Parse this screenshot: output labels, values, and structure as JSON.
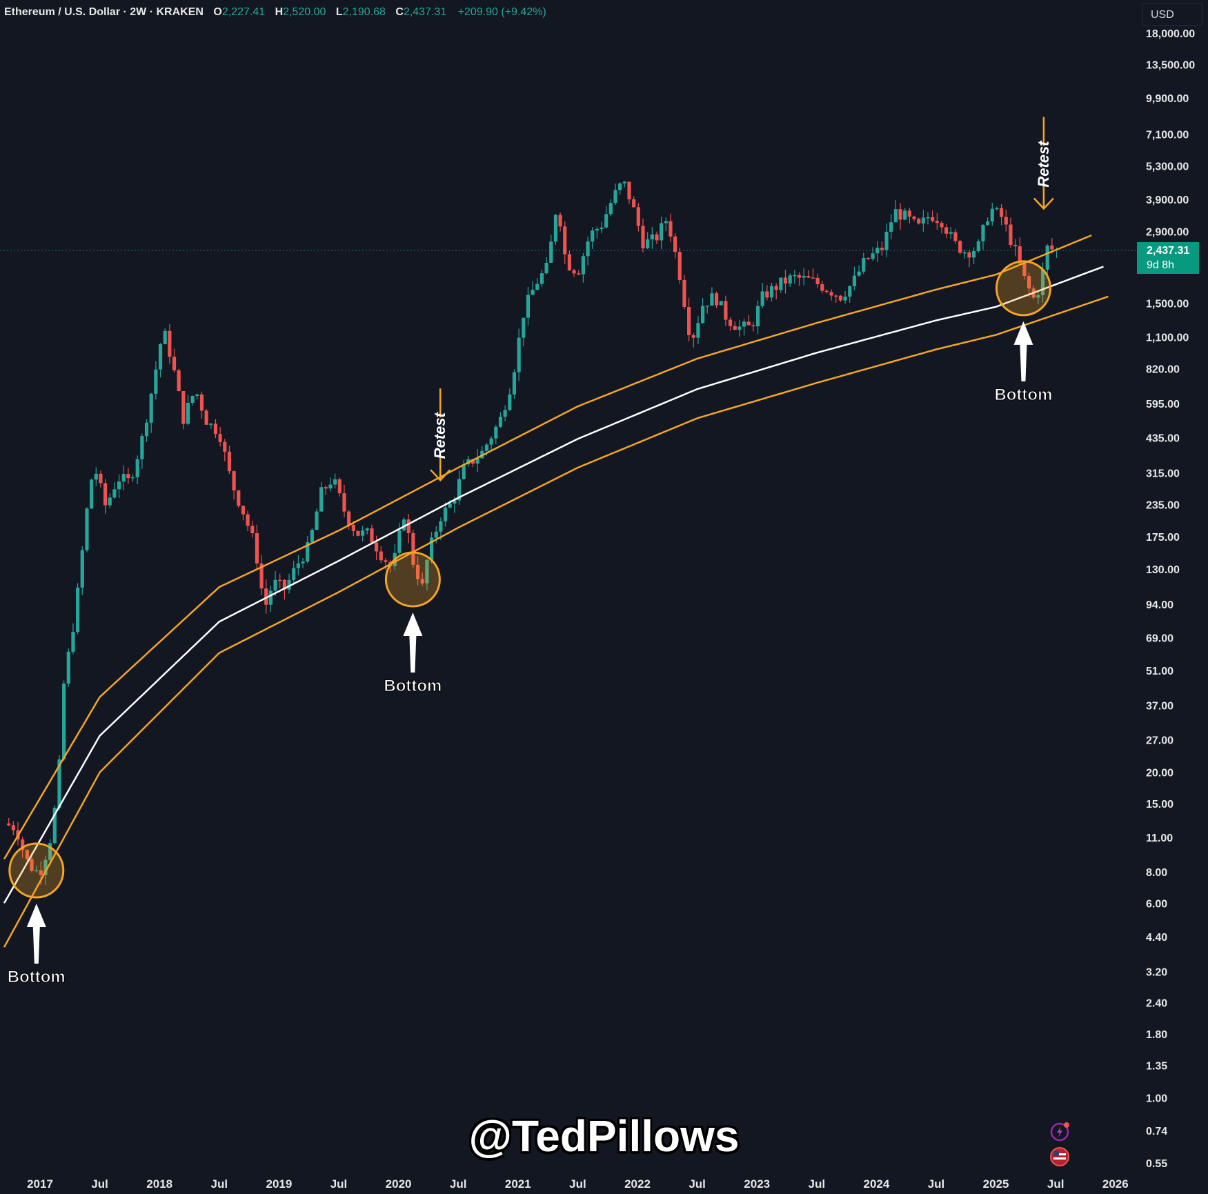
{
  "header": {
    "symbol": "Ethereum / U.S. Dollar · 2W · KRAKEN",
    "open_label": "O",
    "open": "2,227.41",
    "high_label": "H",
    "high": "2,520.00",
    "low_label": "L",
    "low": "2,190.68",
    "close_label": "C",
    "close": "2,437.31",
    "change": "+209.90 (+9.42%)"
  },
  "currency_button": "USD",
  "price_tag": {
    "price": "2,437.31",
    "countdown": "9d 8h"
  },
  "watermark": "@TedPillows",
  "colors": {
    "background": "#131722",
    "up": "#26a69a",
    "down": "#ef5350",
    "band": "#f5a623",
    "center": "#ffffff"
  },
  "chart_data": {
    "type": "candlestick",
    "y_scale": "log",
    "ylim": [
      0.5,
      20000
    ],
    "y_ticks": [
      "18,000.00",
      "13,500.00",
      "9,900.00",
      "7,100.00",
      "5,300.00",
      "3,900.00",
      "2,900.00",
      "1,500.00",
      "1,100.00",
      "820.00",
      "595.00",
      "435.00",
      "315.00",
      "235.00",
      "175.00",
      "130.00",
      "94.00",
      "69.00",
      "51.00",
      "37.00",
      "27.00",
      "20.00",
      "15.00",
      "11.00",
      "8.00",
      "6.00",
      "4.40",
      "3.20",
      "2.40",
      "1.80",
      "1.35",
      "1.00",
      "0.74",
      "0.55"
    ],
    "x_ticks": [
      {
        "label": "2017",
        "t": 2017.0
      },
      {
        "label": "Jul",
        "t": 2017.5
      },
      {
        "label": "2018",
        "t": 2018.0
      },
      {
        "label": "Jul",
        "t": 2018.5
      },
      {
        "label": "2019",
        "t": 2019.0
      },
      {
        "label": "Jul",
        "t": 2019.5
      },
      {
        "label": "2020",
        "t": 2020.0
      },
      {
        "label": "Jul",
        "t": 2020.5
      },
      {
        "label": "2021",
        "t": 2021.0
      },
      {
        "label": "Jul",
        "t": 2021.5
      },
      {
        "label": "2022",
        "t": 2022.0
      },
      {
        "label": "Jul",
        "t": 2022.5
      },
      {
        "label": "2023",
        "t": 2023.0
      },
      {
        "label": "Jul",
        "t": 2023.5
      },
      {
        "label": "2024",
        "t": 2024.0
      },
      {
        "label": "Jul",
        "t": 2024.5
      },
      {
        "label": "2025",
        "t": 2025.0
      },
      {
        "label": "Jul",
        "t": 2025.5
      },
      {
        "label": "2026",
        "t": 2026.0
      }
    ],
    "price_path": [
      [
        2016.7,
        12.5
      ],
      [
        2016.8,
        12
      ],
      [
        2016.88,
        9
      ],
      [
        2016.95,
        8.1
      ],
      [
        2017.0,
        8
      ],
      [
        2017.08,
        10.5
      ],
      [
        2017.15,
        17
      ],
      [
        2017.2,
        45
      ],
      [
        2017.3,
        90
      ],
      [
        2017.4,
        240
      ],
      [
        2017.45,
        340
      ],
      [
        2017.55,
        230
      ],
      [
        2017.65,
        300
      ],
      [
        2017.75,
        290
      ],
      [
        2017.85,
        420
      ],
      [
        2017.95,
        730
      ],
      [
        2018.03,
        1180
      ],
      [
        2018.1,
        900
      ],
      [
        2018.2,
        520
      ],
      [
        2018.3,
        680
      ],
      [
        2018.4,
        500
      ],
      [
        2018.5,
        460
      ],
      [
        2018.6,
        290
      ],
      [
        2018.7,
        220
      ],
      [
        2018.8,
        160
      ],
      [
        2018.88,
        90
      ],
      [
        2018.95,
        115
      ],
      [
        2019.05,
        108
      ],
      [
        2019.15,
        135
      ],
      [
        2019.25,
        160
      ],
      [
        2019.35,
        260
      ],
      [
        2019.45,
        300
      ],
      [
        2019.55,
        220
      ],
      [
        2019.65,
        180
      ],
      [
        2019.75,
        180
      ],
      [
        2019.85,
        150
      ],
      [
        2019.95,
        130
      ],
      [
        2020.05,
        220
      ],
      [
        2020.12,
        140
      ],
      [
        2020.2,
        110
      ],
      [
        2020.25,
        150
      ],
      [
        2020.35,
        210
      ],
      [
        2020.45,
        240
      ],
      [
        2020.55,
        330
      ],
      [
        2020.7,
        380
      ],
      [
        2020.85,
        510
      ],
      [
        2020.95,
        740
      ],
      [
        2021.05,
        1400
      ],
      [
        2021.15,
        1800
      ],
      [
        2021.25,
        2100
      ],
      [
        2021.33,
        3900
      ],
      [
        2021.4,
        2200
      ],
      [
        2021.5,
        2000
      ],
      [
        2021.6,
        2800
      ],
      [
        2021.7,
        3100
      ],
      [
        2021.8,
        4000
      ],
      [
        2021.88,
        4600
      ],
      [
        2021.95,
        3800
      ],
      [
        2022.05,
        2600
      ],
      [
        2022.15,
        2700
      ],
      [
        2022.25,
        3300
      ],
      [
        2022.35,
        2000
      ],
      [
        2022.45,
        1050
      ],
      [
        2022.55,
        1500
      ],
      [
        2022.65,
        1600
      ],
      [
        2022.75,
        1300
      ],
      [
        2022.85,
        1200
      ],
      [
        2022.95,
        1200
      ],
      [
        2023.05,
        1600
      ],
      [
        2023.2,
        1800
      ],
      [
        2023.3,
        1900
      ],
      [
        2023.45,
        1850
      ],
      [
        2023.55,
        1750
      ],
      [
        2023.7,
        1600
      ],
      [
        2023.8,
        1800
      ],
      [
        2023.9,
        2200
      ],
      [
        2024.05,
        2500
      ],
      [
        2024.15,
        3500
      ],
      [
        2024.25,
        3300
      ],
      [
        2024.35,
        3000
      ],
      [
        2024.45,
        3400
      ],
      [
        2024.55,
        3200
      ],
      [
        2024.65,
        2600
      ],
      [
        2024.75,
        2400
      ],
      [
        2024.85,
        2500
      ],
      [
        2024.95,
        3600
      ],
      [
        2025.05,
        3300
      ],
      [
        2025.15,
        2500
      ],
      [
        2025.25,
        1800
      ],
      [
        2025.32,
        1550
      ],
      [
        2025.38,
        1800
      ],
      [
        2025.42,
        2500
      ],
      [
        2025.48,
        2450
      ],
      [
        2025.52,
        2437
      ]
    ],
    "channel": {
      "upper": [
        [
          2016.7,
          9.0
        ],
        [
          2017.5,
          40
        ],
        [
          2018.5,
          110
        ],
        [
          2019.5,
          185
        ],
        [
          2020.5,
          330
        ],
        [
          2021.5,
          580
        ],
        [
          2022.5,
          900
        ],
        [
          2023.5,
          1250
        ],
        [
          2024.5,
          1700
        ],
        [
          2025.0,
          1950
        ],
        [
          2025.8,
          2800
        ]
      ],
      "center": [
        [
          2016.7,
          6.0
        ],
        [
          2017.5,
          28
        ],
        [
          2018.5,
          80
        ],
        [
          2019.5,
          140
        ],
        [
          2020.5,
          250
        ],
        [
          2021.5,
          430
        ],
        [
          2022.5,
          680
        ],
        [
          2023.5,
          950
        ],
        [
          2024.5,
          1280
        ],
        [
          2025.0,
          1450
        ],
        [
          2025.9,
          2100
        ]
      ],
      "lower": [
        [
          2016.7,
          4.0
        ],
        [
          2017.5,
          20
        ],
        [
          2018.5,
          60
        ],
        [
          2019.5,
          105
        ],
        [
          2020.5,
          190
        ],
        [
          2021.5,
          330
        ],
        [
          2022.5,
          520
        ],
        [
          2023.5,
          720
        ],
        [
          2024.5,
          980
        ],
        [
          2025.0,
          1120
        ],
        [
          2025.95,
          1600
        ]
      ]
    },
    "annotations": [
      {
        "type": "bottom",
        "t": 2016.97,
        "price": 8.1,
        "label": "Bottom"
      },
      {
        "type": "bottom",
        "t": 2020.12,
        "price": 118,
        "label": "Bottom"
      },
      {
        "type": "bottom",
        "t": 2025.23,
        "price": 1720,
        "label": "Bottom"
      },
      {
        "type": "retest",
        "t": 2020.35,
        "price": 240,
        "label": "Retest"
      },
      {
        "type": "retest",
        "t": 2025.4,
        "price": 2920,
        "label": "Retest"
      }
    ]
  }
}
